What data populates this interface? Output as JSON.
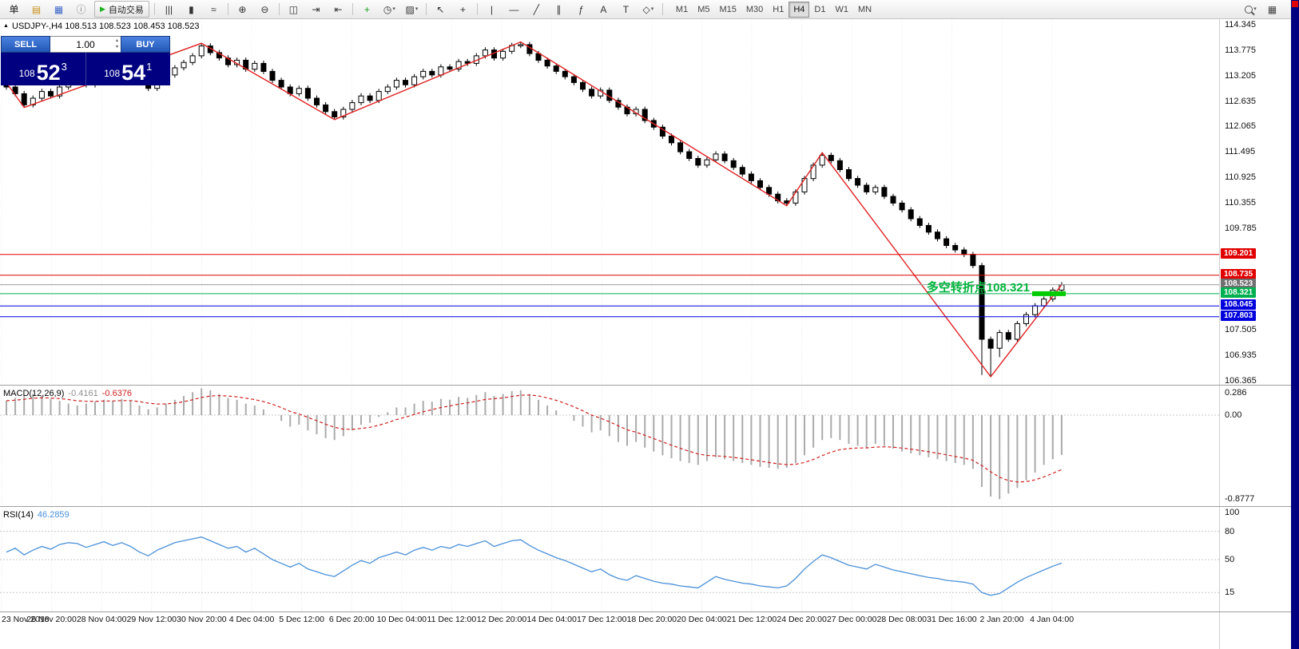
{
  "toolbar": {
    "menu_label": "单",
    "file_icons": [
      {
        "name": "new-order-icon",
        "glyph": "▤",
        "color": "#c89018"
      },
      {
        "name": "profiles-icon",
        "glyph": "▦",
        "color": "#4068c8"
      },
      {
        "name": "community-icon",
        "glyph": "ⓘ",
        "color": "#808080"
      }
    ],
    "auto_trading_label": "自动交易",
    "chart_type_icons": [
      {
        "name": "ohlc-bars-icon",
        "glyph": "|||",
        "color": "#333333"
      },
      {
        "name": "candlestick-icon",
        "glyph": "▮",
        "color": "#333333"
      },
      {
        "name": "line-chart-icon",
        "glyph": "≈",
        "color": "#333333"
      }
    ],
    "zoom_icons": [
      {
        "name": "zoom-in-icon",
        "glyph": "⊕",
        "color": "#333333"
      },
      {
        "name": "zoom-out-icon",
        "glyph": "⊖",
        "color": "#333333"
      }
    ],
    "window_icons": [
      {
        "name": "tile-windows-icon",
        "glyph": "◫",
        "color": "#333333"
      },
      {
        "name": "auto-scroll-icon",
        "glyph": "⇥",
        "color": "#333333"
      },
      {
        "name": "chart-shift-icon",
        "glyph": "⇤",
        "color": "#333333"
      }
    ],
    "insert_icons": [
      {
        "name": "indicators-icon",
        "glyph": "+",
        "color": "#18a018"
      },
      {
        "name": "periods-icon",
        "glyph": "◷",
        "color": "#333333"
      },
      {
        "name": "templates-icon",
        "glyph": "▨",
        "color": "#333333"
      }
    ],
    "cursor_icons": [
      {
        "name": "cursor-icon",
        "glyph": "↖",
        "color": "#333333"
      },
      {
        "name": "crosshair-icon",
        "glyph": "+",
        "color": "#333333"
      }
    ],
    "draw_icons": [
      {
        "name": "vertical-line-icon",
        "glyph": "|",
        "color": "#333333"
      },
      {
        "name": "horizontal-line-icon",
        "glyph": "—",
        "color": "#333333"
      },
      {
        "name": "trendline-icon",
        "glyph": "╱",
        "color": "#333333"
      },
      {
        "name": "channel-icon",
        "glyph": "∥",
        "color": "#333333"
      },
      {
        "name": "fibonacci-icon",
        "glyph": "ƒ",
        "color": "#333333"
      },
      {
        "name": "text-icon",
        "glyph": "A",
        "color": "#333333"
      },
      {
        "name": "label-icon",
        "glyph": "T",
        "color": "#333333"
      },
      {
        "name": "shapes-icon",
        "glyph": "◇",
        "color": "#333333"
      }
    ],
    "timeframes": [
      "M1",
      "M5",
      "M15",
      "M30",
      "H1",
      "H4",
      "D1",
      "W1",
      "MN"
    ],
    "active_timeframe": "H4"
  },
  "quote": {
    "marker_glyph": "▲",
    "symbol_line": "USDJPY-,H4  108.513 108.523 108.453 108.523",
    "sell_label": "SELL",
    "buy_label": "BUY",
    "volume": "1.00",
    "sell_price_big": "108",
    "sell_price_pips": "52",
    "sell_price_frac": "3",
    "buy_price_big": "108",
    "buy_price_pips": "54",
    "buy_price_frac": "1"
  },
  "annotation": {
    "text": "多空转折点108.321",
    "color": "#00b43c"
  },
  "indicator_labels": {
    "macd_title": "MACD(12,26,9)",
    "macd_main": "-0.4161",
    "macd_signal": "-0.6376",
    "rsi_title": "RSI(14)",
    "rsi_value": "46.2859"
  },
  "price_axis": {
    "plain": [
      114.345,
      113.775,
      113.205,
      112.635,
      112.065,
      111.495,
      110.925,
      110.355,
      109.785,
      107.505,
      106.935,
      106.365
    ],
    "tags": [
      {
        "value": 109.201,
        "color": "#e00000"
      },
      {
        "value": 108.735,
        "color": "#e00000"
      },
      {
        "value": 108.523,
        "color": "#707070"
      },
      {
        "value": 108.321,
        "color": "#00b050"
      },
      {
        "value": 108.045,
        "color": "#0000dd"
      },
      {
        "value": 107.803,
        "color": "#0000dd"
      }
    ]
  },
  "time_axis": {
    "labels": [
      "23 Nov 2018",
      "26 Nov 20:00",
      "28 Nov 04:00",
      "29 Nov 12:00",
      "30 Nov 20:00",
      "4 Dec 04:00",
      "5 Dec 12:00",
      "6 Dec 20:00",
      "10 Dec 04:00",
      "11 Dec 12:00",
      "12 Dec 20:00",
      "14 Dec 04:00",
      "17 Dec 12:00",
      "18 Dec 20:00",
      "20 Dec 04:00",
      "21 Dec 12:00",
      "24 Dec 20:00",
      "27 Dec 00:00",
      "28 Dec 08:00",
      "31 Dec 16:00",
      "2 Jan 20:00",
      "4 Jan 04:00"
    ]
  },
  "chart_data": [
    {
      "type": "candlestick",
      "title": "USDJPY- H4",
      "ylim": [
        106.28,
        114.47
      ],
      "first_open": 113.05,
      "default_wick": 0.06,
      "closes": [
        112.95,
        112.8,
        112.55,
        112.7,
        112.85,
        112.75,
        112.95,
        113.05,
        113.1,
        113.0,
        113.15,
        113.28,
        113.2,
        113.32,
        113.25,
        113.05,
        112.92,
        113.1,
        113.22,
        113.38,
        113.5,
        113.65,
        113.87,
        113.72,
        113.6,
        113.45,
        113.55,
        113.35,
        113.48,
        113.3,
        113.1,
        112.95,
        112.8,
        112.92,
        112.7,
        112.55,
        112.4,
        112.28,
        112.45,
        112.6,
        112.75,
        112.65,
        112.85,
        112.95,
        113.1,
        113.0,
        113.18,
        113.3,
        113.22,
        113.4,
        113.35,
        113.52,
        113.48,
        113.65,
        113.78,
        113.6,
        113.75,
        113.88,
        113.9,
        113.7,
        113.55,
        113.42,
        113.3,
        113.18,
        113.05,
        112.9,
        112.75,
        112.88,
        112.65,
        112.5,
        112.35,
        112.45,
        112.2,
        112.05,
        111.85,
        111.7,
        111.5,
        111.35,
        111.2,
        111.32,
        111.45,
        111.3,
        111.15,
        111.0,
        110.85,
        110.7,
        110.55,
        110.4,
        110.35,
        110.6,
        110.9,
        111.2,
        111.42,
        111.3,
        111.1,
        110.9,
        110.75,
        110.6,
        110.7,
        110.5,
        110.35,
        110.2,
        110.0,
        109.85,
        109.7,
        109.55,
        109.4,
        109.3,
        109.2,
        108.95,
        107.3,
        107.1,
        107.45,
        107.3,
        107.65,
        107.85,
        108.05,
        108.2,
        108.4,
        108.52
      ],
      "wick_overrides": {
        "110": 106.5,
        "111": 106.46,
        "112": 106.9
      },
      "zigzag": [
        [
          0,
          113.05
        ],
        [
          2,
          112.49
        ],
        [
          22,
          113.93
        ],
        [
          37,
          112.22
        ],
        [
          58,
          113.96
        ],
        [
          88,
          110.29
        ],
        [
          92,
          111.48
        ],
        [
          111,
          106.46
        ],
        [
          119,
          108.52
        ]
      ],
      "zigzag_color": "#e02020",
      "levels": [
        {
          "price": 109.201,
          "color": "#e00000"
        },
        {
          "price": 108.735,
          "color": "#e00000"
        },
        {
          "price": 108.523,
          "color": "#9b9b9b"
        },
        {
          "price": 108.321,
          "color": "#00b050"
        },
        {
          "price": 108.045,
          "color": "#0000dd"
        },
        {
          "price": 107.803,
          "color": "#0000dd"
        }
      ],
      "trend_marker": {
        "price": 108.321,
        "x": 1292,
        "width": 42,
        "height": 6,
        "color": "#00cc00"
      }
    },
    {
      "type": "bar",
      "name": "MACD(12,26,9)",
      "current_main": -0.4161,
      "current_signal": -0.6376,
      "ylim": [
        -0.95,
        0.3
      ],
      "axis_labels": [
        {
          "text": "0.286",
          "value": 0.286
        },
        {
          "text": "0.00",
          "value": 0
        },
        {
          "text": "-0.8777",
          "value": -0.8777
        }
      ],
      "histogram_color": "#ababab",
      "signal_color": "#d02020",
      "signal_ema_period": 9,
      "macd": [
        0.15,
        0.18,
        0.2,
        0.22,
        0.2,
        0.17,
        0.15,
        0.12,
        0.1,
        0.12,
        0.14,
        0.16,
        0.15,
        0.17,
        0.15,
        0.1,
        0.06,
        0.08,
        0.12,
        0.16,
        0.2,
        0.24,
        0.28,
        0.26,
        0.22,
        0.18,
        0.16,
        0.12,
        0.1,
        0.06,
        0.0,
        -0.06,
        -0.12,
        -0.1,
        -0.16,
        -0.2,
        -0.24,
        -0.26,
        -0.22,
        -0.16,
        -0.1,
        -0.08,
        -0.02,
        0.03,
        0.08,
        0.08,
        0.12,
        0.15,
        0.14,
        0.17,
        0.16,
        0.19,
        0.18,
        0.21,
        0.24,
        0.2,
        0.22,
        0.25,
        0.26,
        0.22,
        0.16,
        0.1,
        0.05,
        0.0,
        -0.06,
        -0.12,
        -0.18,
        -0.16,
        -0.22,
        -0.28,
        -0.32,
        -0.28,
        -0.34,
        -0.38,
        -0.42,
        -0.45,
        -0.48,
        -0.5,
        -0.52,
        -0.48,
        -0.44,
        -0.46,
        -0.48,
        -0.5,
        -0.52,
        -0.54,
        -0.55,
        -0.56,
        -0.55,
        -0.5,
        -0.42,
        -0.34,
        -0.26,
        -0.24,
        -0.26,
        -0.3,
        -0.32,
        -0.34,
        -0.3,
        -0.32,
        -0.35,
        -0.38,
        -0.4,
        -0.42,
        -0.44,
        -0.46,
        -0.48,
        -0.5,
        -0.52,
        -0.56,
        -0.75,
        -0.85,
        -0.877,
        -0.82,
        -0.76,
        -0.68,
        -0.6,
        -0.52,
        -0.46,
        -0.4161
      ]
    },
    {
      "type": "line",
      "name": "RSI(14)",
      "current_value": 46.2859,
      "ylim": [
        0,
        100
      ],
      "levels": [
        80,
        50,
        15
      ],
      "axis_labels": [
        100,
        80,
        50,
        15
      ],
      "line_color": "#4a90d9",
      "values": [
        58,
        62,
        55,
        60,
        64,
        61,
        66,
        68,
        67,
        63,
        66,
        69,
        65,
        68,
        64,
        58,
        54,
        60,
        64,
        68,
        70,
        72,
        74,
        70,
        66,
        62,
        64,
        58,
        62,
        56,
        50,
        46,
        42,
        46,
        40,
        37,
        34,
        32,
        38,
        44,
        49,
        46,
        52,
        55,
        58,
        55,
        60,
        63,
        60,
        64,
        62,
        66,
        64,
        67,
        70,
        64,
        67,
        70,
        71,
        65,
        60,
        56,
        52,
        49,
        45,
        41,
        37,
        40,
        34,
        30,
        28,
        33,
        30,
        27,
        25,
        24,
        22,
        21,
        20,
        26,
        32,
        29,
        27,
        25,
        24,
        22,
        21,
        20,
        22,
        30,
        40,
        48,
        55,
        52,
        48,
        44,
        42,
        40,
        45,
        42,
        39,
        37,
        35,
        33,
        31,
        30,
        28,
        27,
        26,
        24,
        15,
        12,
        14,
        20,
        26,
        31,
        35,
        39,
        43,
        46.29
      ]
    }
  ]
}
